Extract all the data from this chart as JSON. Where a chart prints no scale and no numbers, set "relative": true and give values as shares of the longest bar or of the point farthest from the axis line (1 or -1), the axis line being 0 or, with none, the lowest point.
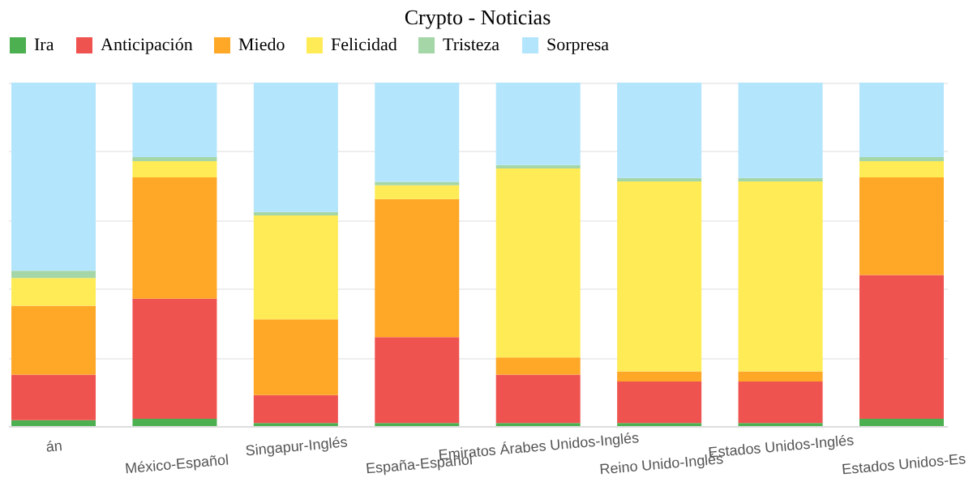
{
  "chart_data": {
    "type": "bar",
    "title": "Crypto - Noticias",
    "stacked": true,
    "relative": true,
    "grid": "y",
    "legend": "top",
    "categories": [
      "án",
      "México-Español",
      "Singapur-Inglés",
      "España-Español",
      "Emiratos Árabes Unidos-Inglés",
      "Reino Unido-Inglés",
      "Estados Unidos-Inglés",
      "Estados Unidos-Es"
    ],
    "series": [
      {
        "name": "Ira",
        "color": "#4caf50",
        "values": [
          0.017,
          0.021,
          0.009,
          0.009,
          0.009,
          0.009,
          0.009,
          0.021
        ]
      },
      {
        "name": "Anticipación",
        "color": "#ef5350",
        "values": [
          0.133,
          0.35,
          0.081,
          0.25,
          0.141,
          0.121,
          0.121,
          0.419
        ]
      },
      {
        "name": "Miedo",
        "color": "#ffa726",
        "values": [
          0.2,
          0.353,
          0.221,
          0.402,
          0.05,
          0.029,
          0.029,
          0.284
        ]
      },
      {
        "name": "Felicidad",
        "color": "#ffeb55",
        "values": [
          0.081,
          0.047,
          0.302,
          0.04,
          0.55,
          0.553,
          0.553,
          0.047
        ]
      },
      {
        "name": "Tristeza",
        "color": "#a5d6a7",
        "values": [
          0.021,
          0.012,
          0.01,
          0.01,
          0.01,
          0.01,
          0.01,
          0.012
        ]
      },
      {
        "name": "Sorpresa",
        "color": "#b3e5fc",
        "values": [
          0.548,
          0.217,
          0.377,
          0.289,
          0.24,
          0.278,
          0.278,
          0.217
        ]
      }
    ]
  }
}
